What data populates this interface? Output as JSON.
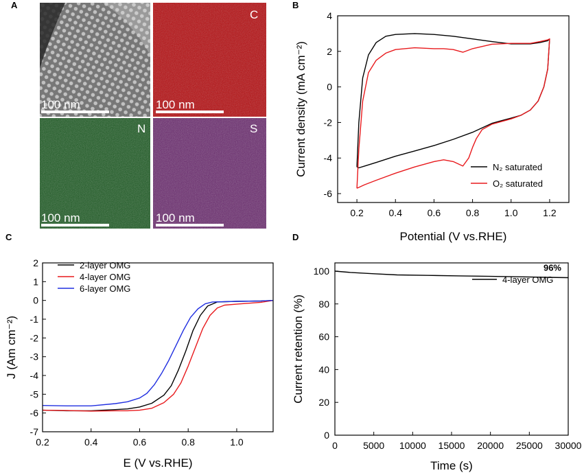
{
  "figure": {
    "panel_a": {
      "label": "A",
      "tiles": [
        {
          "name": "haadf",
          "element": "",
          "scale_bar": "100 nm",
          "base_color": "#5a5a5a"
        },
        {
          "name": "carbon",
          "element": "C",
          "scale_bar": "100 nm",
          "base_color": "#b50f12"
        },
        {
          "name": "nitrogen",
          "element": "N",
          "scale_bar": "100 nm",
          "base_color": "#1c5a22"
        },
        {
          "name": "sulfur",
          "element": "S",
          "scale_bar": "100 nm",
          "base_color": "#6a2a6e"
        }
      ]
    }
  },
  "chart_data": [
    {
      "panel": "B",
      "type": "line",
      "xlabel": "Potential (V vs.RHE)",
      "ylabel": "Current density (mA cm⁻²)",
      "xlim": [
        0.1,
        1.3
      ],
      "ylim": [
        -6.5,
        4
      ],
      "xticks": [
        "0.2",
        "0.4",
        "0.6",
        "0.8",
        "1.0",
        "1.2"
      ],
      "xtick_values": [
        0.2,
        0.4,
        0.6,
        0.8,
        1.0,
        1.2
      ],
      "yticks": [
        "-6",
        "-4",
        "-2",
        "0",
        "2",
        "4"
      ],
      "ytick_values": [
        -6,
        -4,
        -2,
        0,
        2,
        4
      ],
      "legend_position": "bottom-right",
      "series": [
        {
          "name": "N₂ saturated",
          "color": "#000000",
          "x": [
            0.2,
            0.21,
            0.23,
            0.26,
            0.3,
            0.35,
            0.4,
            0.5,
            0.6,
            0.7,
            0.8,
            0.9,
            1.0,
            1.1,
            1.15,
            1.19,
            1.2,
            1.19,
            1.17,
            1.14,
            1.1,
            1.05,
            1.0,
            0.95,
            0.9,
            0.85,
            0.8,
            0.7,
            0.6,
            0.5,
            0.4,
            0.3,
            0.24,
            0.21,
            0.2
          ],
          "y": [
            -4.5,
            -2.0,
            0.5,
            1.8,
            2.5,
            2.85,
            2.95,
            3.0,
            2.95,
            2.85,
            2.7,
            2.55,
            2.42,
            2.42,
            2.5,
            2.6,
            2.7,
            1.0,
            0.0,
            -0.8,
            -1.3,
            -1.6,
            -1.75,
            -1.9,
            -2.05,
            -2.3,
            -2.55,
            -2.95,
            -3.3,
            -3.6,
            -3.9,
            -4.25,
            -4.45,
            -4.55,
            -4.5
          ]
        },
        {
          "name": "O₂ saturated",
          "color": "#e8191c",
          "x": [
            0.2,
            0.21,
            0.23,
            0.26,
            0.3,
            0.35,
            0.4,
            0.5,
            0.6,
            0.65,
            0.7,
            0.75,
            0.8,
            0.9,
            1.0,
            1.1,
            1.15,
            1.19,
            1.2,
            1.19,
            1.17,
            1.14,
            1.1,
            1.05,
            1.0,
            0.95,
            0.9,
            0.85,
            0.82,
            0.8,
            0.78,
            0.75,
            0.72,
            0.7,
            0.65,
            0.6,
            0.5,
            0.4,
            0.3,
            0.24,
            0.21,
            0.2
          ],
          "y": [
            -5.7,
            -3.5,
            -0.8,
            0.8,
            1.5,
            1.9,
            2.1,
            2.2,
            2.15,
            2.15,
            2.1,
            1.95,
            2.15,
            2.4,
            2.45,
            2.45,
            2.55,
            2.65,
            2.7,
            1.0,
            0.0,
            -0.8,
            -1.3,
            -1.6,
            -1.8,
            -1.95,
            -2.1,
            -2.4,
            -2.9,
            -3.4,
            -4.0,
            -4.45,
            -4.3,
            -4.2,
            -4.1,
            -4.2,
            -4.5,
            -4.85,
            -5.25,
            -5.5,
            -5.65,
            -5.7
          ]
        }
      ]
    },
    {
      "panel": "C",
      "type": "line",
      "xlabel": "E (V vs.RHE)",
      "ylabel": "J (Am cm⁻²)",
      "xlim": [
        0.2,
        1.15
      ],
      "ylim": [
        -7,
        2
      ],
      "xticks": [
        "0.2",
        "0.4",
        "0.6",
        "0.8",
        "1.0"
      ],
      "xtick_values": [
        0.2,
        0.4,
        0.6,
        0.8,
        1.0
      ],
      "yticks": [
        "-7",
        "-6",
        "-5",
        "-4",
        "-3",
        "-2",
        "-1",
        "0",
        "1",
        "2"
      ],
      "ytick_values": [
        -7,
        -6,
        -5,
        -4,
        -3,
        -2,
        -1,
        0,
        1,
        2
      ],
      "legend_position": "top-left",
      "series": [
        {
          "name": "2-layer OMG",
          "color": "#000000",
          "x": [
            0.2,
            0.3,
            0.4,
            0.5,
            0.55,
            0.6,
            0.65,
            0.7,
            0.73,
            0.76,
            0.79,
            0.82,
            0.85,
            0.88,
            0.92,
            1.0,
            1.1,
            1.15
          ],
          "y": [
            -5.85,
            -5.88,
            -5.88,
            -5.82,
            -5.78,
            -5.68,
            -5.48,
            -5.05,
            -4.55,
            -3.7,
            -2.7,
            -1.6,
            -0.8,
            -0.3,
            -0.08,
            -0.05,
            -0.03,
            0.0
          ]
        },
        {
          "name": "4-layer OMG",
          "color": "#e8191c",
          "x": [
            0.2,
            0.3,
            0.4,
            0.5,
            0.55,
            0.6,
            0.65,
            0.7,
            0.74,
            0.77,
            0.8,
            0.83,
            0.86,
            0.89,
            0.92,
            0.95,
            1.0,
            1.1,
            1.15
          ],
          "y": [
            -5.85,
            -5.87,
            -5.9,
            -5.88,
            -5.88,
            -5.85,
            -5.75,
            -5.45,
            -5.0,
            -4.4,
            -3.5,
            -2.5,
            -1.5,
            -0.8,
            -0.4,
            -0.25,
            -0.2,
            -0.1,
            0.0
          ]
        },
        {
          "name": "6-layer OMG",
          "color": "#1f2ee0",
          "x": [
            0.2,
            0.3,
            0.4,
            0.5,
            0.55,
            0.6,
            0.63,
            0.66,
            0.69,
            0.72,
            0.75,
            0.78,
            0.81,
            0.84,
            0.87,
            0.9,
            1.0,
            1.1,
            1.15
          ],
          "y": [
            -5.6,
            -5.62,
            -5.62,
            -5.5,
            -5.4,
            -5.2,
            -4.95,
            -4.5,
            -3.9,
            -3.2,
            -2.4,
            -1.6,
            -0.9,
            -0.45,
            -0.18,
            -0.08,
            -0.05,
            -0.03,
            0.0
          ]
        }
      ]
    },
    {
      "panel": "D",
      "type": "line",
      "xlabel": "Time (s)",
      "ylabel": "Current retention (%)",
      "xlim": [
        0,
        30000
      ],
      "ylim": [
        0,
        105
      ],
      "xticks": [
        "0",
        "5000",
        "10000",
        "15000",
        "20000",
        "25000",
        "30000"
      ],
      "xtick_values": [
        0,
        5000,
        10000,
        15000,
        20000,
        25000,
        30000
      ],
      "yticks": [
        "0",
        "20",
        "40",
        "60",
        "80",
        "100"
      ],
      "ytick_values": [
        0,
        20,
        40,
        60,
        80,
        100
      ],
      "legend_position": "top-right",
      "annotation": "96%",
      "series": [
        {
          "name": "4-layer OMG",
          "color": "#000000",
          "x": [
            0,
            2000,
            5000,
            8000,
            12000,
            16000,
            20000,
            24000,
            27000,
            30000
          ],
          "y": [
            100,
            99.2,
            98.4,
            97.7,
            97.4,
            97.1,
            96.8,
            96.5,
            96.2,
            96.0
          ]
        }
      ]
    }
  ]
}
